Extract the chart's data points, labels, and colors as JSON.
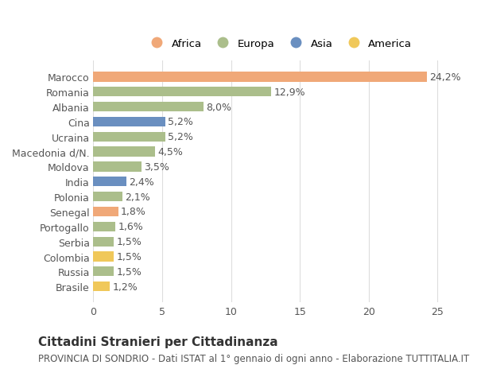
{
  "countries": [
    "Marocco",
    "Romania",
    "Albania",
    "Cina",
    "Ucraina",
    "Macedonia d/N.",
    "Moldova",
    "India",
    "Polonia",
    "Senegal",
    "Portogallo",
    "Serbia",
    "Colombia",
    "Russia",
    "Brasile"
  ],
  "values": [
    24.2,
    12.9,
    8.0,
    5.2,
    5.2,
    4.5,
    3.5,
    2.4,
    2.1,
    1.8,
    1.6,
    1.5,
    1.5,
    1.5,
    1.2
  ],
  "labels": [
    "24,2%",
    "12,9%",
    "8,0%",
    "5,2%",
    "5,2%",
    "4,5%",
    "3,5%",
    "2,4%",
    "2,1%",
    "1,8%",
    "1,6%",
    "1,5%",
    "1,5%",
    "1,5%",
    "1,2%"
  ],
  "continents": [
    "Africa",
    "Europa",
    "Europa",
    "Asia",
    "Europa",
    "Europa",
    "Europa",
    "Asia",
    "Europa",
    "Africa",
    "Europa",
    "Europa",
    "America",
    "Europa",
    "America"
  ],
  "colors": {
    "Africa": "#F0A878",
    "Europa": "#ABBE8B",
    "Asia": "#6A8FC0",
    "America": "#F0C85A"
  },
  "legend_order": [
    "Africa",
    "Europa",
    "Asia",
    "America"
  ],
  "legend_colors": [
    "#F0A878",
    "#ABBE8B",
    "#6A8FC0",
    "#F0C85A"
  ],
  "title": "Cittadini Stranieri per Cittadinanza",
  "subtitle": "PROVINCIA DI SONDRIO - Dati ISTAT al 1° gennaio di ogni anno - Elaborazione TUTTITALIA.IT",
  "xlim": [
    0,
    27
  ],
  "xticks": [
    0,
    5,
    10,
    15,
    20,
    25
  ],
  "bg_color": "#FFFFFF",
  "grid_color": "#DDDDDD",
  "bar_height": 0.65,
  "text_color": "#555555",
  "label_fontsize": 9,
  "tick_fontsize": 9,
  "title_fontsize": 11,
  "subtitle_fontsize": 8.5
}
